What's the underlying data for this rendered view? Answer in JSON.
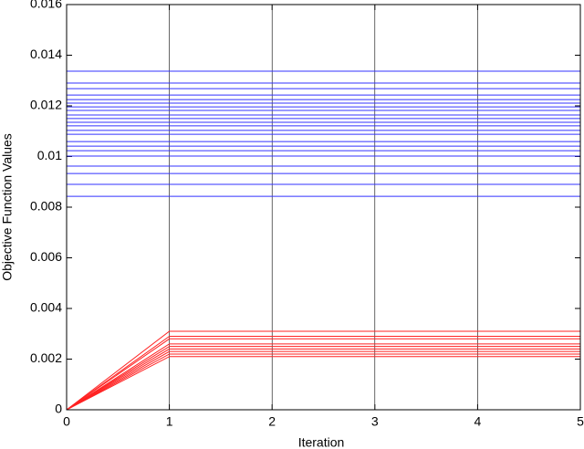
{
  "chart_data": {
    "type": "line",
    "xlabel": "Iteration",
    "ylabel": "Objective Function Values",
    "x": [
      0,
      1,
      2,
      3,
      4,
      5
    ],
    "xlim": [
      0,
      5
    ],
    "xticks": [
      0,
      1,
      2,
      3,
      4,
      5
    ],
    "ylim": [
      0,
      0.016
    ],
    "yticks": [
      0,
      0.002,
      0.004,
      0.006,
      0.008,
      0.01,
      0.012,
      0.014,
      0.016
    ],
    "grid": true,
    "series": [
      {
        "color": "#3333ff",
        "values": [
          0.01337,
          0.01337,
          0.01337,
          0.01337,
          0.01337,
          0.01337
        ]
      },
      {
        "color": "#3333ff",
        "values": [
          0.0129,
          0.0129,
          0.0129,
          0.0129,
          0.0129,
          0.0129
        ]
      },
      {
        "color": "#3333ff",
        "values": [
          0.01268,
          0.01268,
          0.01268,
          0.01268,
          0.01268,
          0.01268
        ]
      },
      {
        "color": "#3333ff",
        "values": [
          0.01243,
          0.01243,
          0.01243,
          0.01243,
          0.01243,
          0.01243
        ]
      },
      {
        "color": "#3333ff",
        "values": [
          0.01225,
          0.01225,
          0.01225,
          0.01225,
          0.01225,
          0.01225
        ]
      },
      {
        "color": "#3333ff",
        "values": [
          0.01211,
          0.01211,
          0.01211,
          0.01211,
          0.01211,
          0.01211
        ]
      },
      {
        "color": "#3333ff",
        "values": [
          0.01196,
          0.01196,
          0.01196,
          0.01196,
          0.01196,
          0.01196
        ]
      },
      {
        "color": "#3333ff",
        "values": [
          0.01182,
          0.01182,
          0.01182,
          0.01182,
          0.01182,
          0.01182
        ]
      },
      {
        "color": "#3333ff",
        "values": [
          0.01164,
          0.01164,
          0.01164,
          0.01164,
          0.01164,
          0.01164
        ]
      },
      {
        "color": "#3333ff",
        "values": [
          0.0115,
          0.0115,
          0.0115,
          0.0115,
          0.0115,
          0.0115
        ]
      },
      {
        "color": "#3333ff",
        "values": [
          0.01135,
          0.01135,
          0.01135,
          0.01135,
          0.01135,
          0.01135
        ]
      },
      {
        "color": "#3333ff",
        "values": [
          0.01121,
          0.01121,
          0.01121,
          0.01121,
          0.01121,
          0.01121
        ]
      },
      {
        "color": "#3333ff",
        "values": [
          0.01103,
          0.01103,
          0.01103,
          0.01103,
          0.01103,
          0.01103
        ]
      },
      {
        "color": "#3333ff",
        "values": [
          0.01088,
          0.01088,
          0.01088,
          0.01088,
          0.01088,
          0.01088
        ]
      },
      {
        "color": "#3333ff",
        "values": [
          0.01059,
          0.01059,
          0.01059,
          0.01059,
          0.01059,
          0.01059
        ]
      },
      {
        "color": "#3333ff",
        "values": [
          0.01041,
          0.01041,
          0.01041,
          0.01041,
          0.01041,
          0.01041
        ]
      },
      {
        "color": "#3333ff",
        "values": [
          0.01023,
          0.01023,
          0.01023,
          0.01023,
          0.01023,
          0.01023
        ]
      },
      {
        "color": "#3333ff",
        "values": [
          0.01002,
          0.01002,
          0.01002,
          0.01002,
          0.01002,
          0.01002
        ]
      },
      {
        "color": "#3333ff",
        "values": [
          0.00962,
          0.00962,
          0.00962,
          0.00962,
          0.00962,
          0.00962
        ]
      },
      {
        "color": "#3333ff",
        "values": [
          0.00933,
          0.00933,
          0.00933,
          0.00933,
          0.00933,
          0.00933
        ]
      },
      {
        "color": "#3333ff",
        "values": [
          0.0089,
          0.0089,
          0.0089,
          0.0089,
          0.0089,
          0.0089
        ]
      },
      {
        "color": "#3333ff",
        "values": [
          0.00843,
          0.00843,
          0.00843,
          0.00843,
          0.00843,
          0.00843
        ]
      },
      {
        "color": "#ff2222",
        "values": [
          0,
          0.0031,
          0.0031,
          0.0031,
          0.0031,
          0.0031
        ]
      },
      {
        "color": "#ff2222",
        "values": [
          0,
          0.0029,
          0.0029,
          0.0029,
          0.0029,
          0.0029
        ]
      },
      {
        "color": "#ff2222",
        "values": [
          0,
          0.0028,
          0.0028,
          0.0028,
          0.0028,
          0.0028
        ]
      },
      {
        "color": "#ff2222",
        "values": [
          0,
          0.0026,
          0.0026,
          0.0026,
          0.0026,
          0.0026
        ]
      },
      {
        "color": "#ff2222",
        "values": [
          0,
          0.0025,
          0.0025,
          0.0025,
          0.0025,
          0.0025
        ]
      },
      {
        "color": "#ff2222",
        "values": [
          0,
          0.0024,
          0.0024,
          0.0024,
          0.0024,
          0.0024
        ]
      },
      {
        "color": "#ff2222",
        "values": [
          0,
          0.0023,
          0.0023,
          0.0023,
          0.0023,
          0.0023
        ]
      },
      {
        "color": "#ff2222",
        "values": [
          0,
          0.0022,
          0.0022,
          0.0022,
          0.0022,
          0.0022
        ]
      },
      {
        "color": "#ff2222",
        "values": [
          0,
          0.0021,
          0.0021,
          0.0021,
          0.0021,
          0.0021
        ]
      }
    ]
  }
}
